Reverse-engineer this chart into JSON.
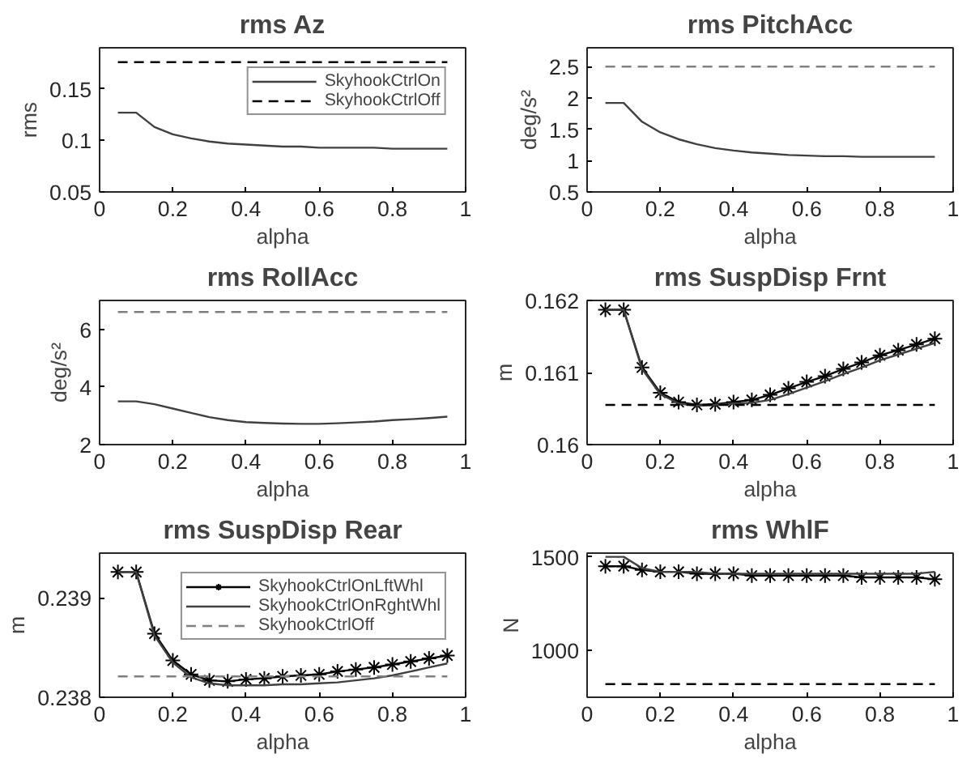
{
  "chart_data": [
    {
      "type": "line",
      "title": "rms Az",
      "xlabel": "alpha",
      "ylabel": "rms",
      "x": [
        0.05,
        0.1,
        0.15,
        0.2,
        0.25,
        0.3,
        0.35,
        0.4,
        0.45,
        0.5,
        0.55,
        0.6,
        0.65,
        0.7,
        0.75,
        0.8,
        0.85,
        0.9,
        0.95
      ],
      "xlim": [
        0,
        1
      ],
      "xticks": [
        0,
        0.2,
        0.4,
        0.6,
        0.8,
        1
      ],
      "ylim": [
        0.05,
        0.19
      ],
      "yticks": [
        0.05,
        0.1,
        0.15
      ],
      "grid": false,
      "legend": "top right",
      "series": [
        {
          "name": "SkyhookCtrlOn",
          "color": "#404040",
          "line_style": "solid",
          "marker": "none",
          "values": [
            0.127,
            0.127,
            0.113,
            0.106,
            0.102,
            0.099,
            0.097,
            0.096,
            0.095,
            0.094,
            0.094,
            0.093,
            0.093,
            0.093,
            0.093,
            0.092,
            0.092,
            0.092,
            0.092
          ]
        },
        {
          "name": "SkyhookCtrlOff",
          "color": "#000000",
          "line_style": "dashed",
          "marker": "none",
          "values": [
            0.176,
            0.176,
            0.176,
            0.176,
            0.176,
            0.176,
            0.176,
            0.176,
            0.176,
            0.176,
            0.176,
            0.176,
            0.176,
            0.176,
            0.176,
            0.176,
            0.176,
            0.176,
            0.176
          ]
        }
      ]
    },
    {
      "type": "line",
      "title": "rms PitchAcc",
      "xlabel": "alpha",
      "ylabel": "deg/s²",
      "x": [
        0.05,
        0.1,
        0.15,
        0.2,
        0.25,
        0.3,
        0.35,
        0.4,
        0.45,
        0.5,
        0.55,
        0.6,
        0.65,
        0.7,
        0.75,
        0.8,
        0.85,
        0.9,
        0.95
      ],
      "xlim": [
        0,
        1
      ],
      "xticks": [
        0,
        0.2,
        0.4,
        0.6,
        0.8,
        1
      ],
      "ylim": [
        0.5,
        2.8
      ],
      "yticks": [
        0.5,
        1,
        1.5,
        2,
        2.5
      ],
      "grid": false,
      "legend": false,
      "series": [
        {
          "color": "#404040",
          "line_style": "solid",
          "marker": "none",
          "values": [
            1.92,
            1.92,
            1.62,
            1.45,
            1.34,
            1.26,
            1.2,
            1.16,
            1.13,
            1.11,
            1.09,
            1.08,
            1.07,
            1.07,
            1.06,
            1.06,
            1.06,
            1.06,
            1.06
          ]
        },
        {
          "color": "#808080",
          "line_style": "dashed",
          "marker": "none",
          "values": [
            2.5,
            2.5,
            2.5,
            2.5,
            2.5,
            2.5,
            2.5,
            2.5,
            2.5,
            2.5,
            2.5,
            2.5,
            2.5,
            2.5,
            2.5,
            2.5,
            2.5,
            2.5,
            2.5
          ]
        }
      ]
    },
    {
      "type": "line",
      "title": "rms RollAcc",
      "xlabel": "alpha",
      "ylabel": "deg/s²",
      "x": [
        0.05,
        0.1,
        0.15,
        0.2,
        0.25,
        0.3,
        0.35,
        0.4,
        0.45,
        0.5,
        0.55,
        0.6,
        0.65,
        0.7,
        0.75,
        0.8,
        0.85,
        0.9,
        0.95
      ],
      "xlim": [
        0,
        1
      ],
      "xticks": [
        0,
        0.2,
        0.4,
        0.6,
        0.8,
        1
      ],
      "ylim": [
        2,
        7
      ],
      "yticks": [
        2,
        4,
        6
      ],
      "grid": false,
      "legend": false,
      "series": [
        {
          "color": "#404040",
          "line_style": "solid",
          "marker": "none",
          "values": [
            3.5,
            3.5,
            3.4,
            3.25,
            3.1,
            2.95,
            2.85,
            2.78,
            2.75,
            2.73,
            2.72,
            2.72,
            2.74,
            2.77,
            2.8,
            2.85,
            2.88,
            2.92,
            2.97
          ]
        },
        {
          "color": "#808080",
          "line_style": "dashed",
          "marker": "none",
          "values": [
            6.6,
            6.6,
            6.6,
            6.6,
            6.6,
            6.6,
            6.6,
            6.6,
            6.6,
            6.6,
            6.6,
            6.6,
            6.6,
            6.6,
            6.6,
            6.6,
            6.6,
            6.6,
            6.6
          ]
        }
      ]
    },
    {
      "type": "line",
      "title": "rms SuspDisp Frnt",
      "xlabel": "alpha",
      "ylabel": "m",
      "x": [
        0.05,
        0.1,
        0.15,
        0.2,
        0.25,
        0.3,
        0.35,
        0.4,
        0.45,
        0.5,
        0.55,
        0.6,
        0.65,
        0.7,
        0.75,
        0.8,
        0.85,
        0.9,
        0.95
      ],
      "xlim": [
        0,
        1
      ],
      "xticks": [
        0,
        0.2,
        0.4,
        0.6,
        0.8,
        1
      ],
      "ylim": [
        0.16,
        0.162
      ],
      "yticks": [
        0.16,
        0.161,
        0.162
      ],
      "grid": false,
      "legend": false,
      "series": [
        {
          "color": "#000000",
          "line_style": "solid",
          "marker": "cross",
          "values": [
            0.16187,
            0.16187,
            0.16107,
            0.16072,
            0.16059,
            0.16055,
            0.16056,
            0.16059,
            0.16062,
            0.16069,
            0.16078,
            0.16087,
            0.16095,
            0.16105,
            0.16114,
            0.16124,
            0.16131,
            0.16139,
            0.16147
          ]
        },
        {
          "color": "#404040",
          "line_style": "solid",
          "marker": "none",
          "values": [
            0.16187,
            0.16187,
            0.16105,
            0.1607,
            0.16057,
            0.16054,
            0.16055,
            0.16057,
            0.16058,
            0.16062,
            0.1607,
            0.16079,
            0.16088,
            0.16098,
            0.16107,
            0.16117,
            0.16125,
            0.16133,
            0.16141
          ]
        },
        {
          "color": "#000000",
          "line_style": "dashed",
          "marker": "none",
          "values": [
            0.16055,
            0.16055,
            0.16055,
            0.16055,
            0.16055,
            0.16055,
            0.16055,
            0.16055,
            0.16055,
            0.16055,
            0.16055,
            0.16055,
            0.16055,
            0.16055,
            0.16055,
            0.16055,
            0.16055,
            0.16055,
            0.16055
          ]
        }
      ]
    },
    {
      "type": "line",
      "title": "rms SuspDisp Rear",
      "xlabel": "alpha",
      "ylabel": "m",
      "x": [
        0.05,
        0.1,
        0.15,
        0.2,
        0.25,
        0.3,
        0.35,
        0.4,
        0.45,
        0.5,
        0.55,
        0.6,
        0.65,
        0.7,
        0.75,
        0.8,
        0.85,
        0.9,
        0.95
      ],
      "xlim": [
        0,
        1
      ],
      "xticks": [
        0,
        0.2,
        0.4,
        0.6,
        0.8,
        1
      ],
      "ylim": [
        0.238,
        0.23945
      ],
      "yticks": [
        0.238,
        0.239
      ],
      "grid": false,
      "legend": "top right",
      "series": [
        {
          "name": "SkyhookCtrlOnLftWhl",
          "color": "#000000",
          "line_style": "solid",
          "marker": "cross",
          "values": [
            0.23926,
            0.23926,
            0.23864,
            0.23837,
            0.23823,
            0.23817,
            0.23816,
            0.23818,
            0.23819,
            0.23821,
            0.23822,
            0.23823,
            0.23826,
            0.23828,
            0.2383,
            0.23833,
            0.23836,
            0.23839,
            0.23842
          ]
        },
        {
          "name": "SkyhookCtrlOnRghtWhl",
          "color": "#404040",
          "line_style": "solid",
          "marker": "none",
          "values": [
            0.23926,
            0.23926,
            0.23862,
            0.23835,
            0.2382,
            0.23814,
            0.23812,
            0.23812,
            0.23812,
            0.23813,
            0.23813,
            0.23814,
            0.23815,
            0.23817,
            0.23819,
            0.23822,
            0.23826,
            0.2383,
            0.23834
          ]
        },
        {
          "name": "SkyhookCtrlOff",
          "color": "#808080",
          "line_style": "dashed",
          "marker": "none",
          "values": [
            0.23821,
            0.23821,
            0.23821,
            0.23821,
            0.23821,
            0.23821,
            0.23821,
            0.23821,
            0.23821,
            0.23821,
            0.23821,
            0.23821,
            0.23821,
            0.23821,
            0.23821,
            0.23821,
            0.23821,
            0.23821,
            0.23821
          ]
        }
      ]
    },
    {
      "type": "line",
      "title": "rms WhlF",
      "xlabel": "alpha",
      "ylabel": "N",
      "x": [
        0.05,
        0.1,
        0.15,
        0.2,
        0.25,
        0.3,
        0.35,
        0.4,
        0.45,
        0.5,
        0.55,
        0.6,
        0.65,
        0.7,
        0.75,
        0.8,
        0.85,
        0.9,
        0.95
      ],
      "xlim": [
        0,
        1
      ],
      "xticks": [
        0,
        0.2,
        0.4,
        0.6,
        0.8,
        1
      ],
      "ylim": [
        750,
        1520
      ],
      "yticks": [
        1000,
        1500
      ],
      "grid": false,
      "legend": false,
      "series": [
        {
          "color": "#000000",
          "line_style": "solid",
          "marker": "cross",
          "values": [
            1450,
            1450,
            1430,
            1420,
            1420,
            1410,
            1410,
            1410,
            1400,
            1400,
            1400,
            1400,
            1400,
            1400,
            1390,
            1390,
            1390,
            1390,
            1380
          ]
        },
        {
          "color": "#404040",
          "line_style": "solid",
          "marker": "none",
          "values": [
            1500,
            1500,
            1440,
            1420,
            1420,
            1420,
            1410,
            1410,
            1410,
            1410,
            1410,
            1410,
            1410,
            1410,
            1410,
            1410,
            1410,
            1410,
            1420
          ]
        },
        {
          "color": "#000000",
          "line_style": "dashed",
          "marker": "none",
          "values": [
            820,
            820,
            820,
            820,
            820,
            820,
            820,
            820,
            820,
            820,
            820,
            820,
            820,
            820,
            820,
            820,
            820,
            820,
            820
          ]
        }
      ]
    }
  ]
}
